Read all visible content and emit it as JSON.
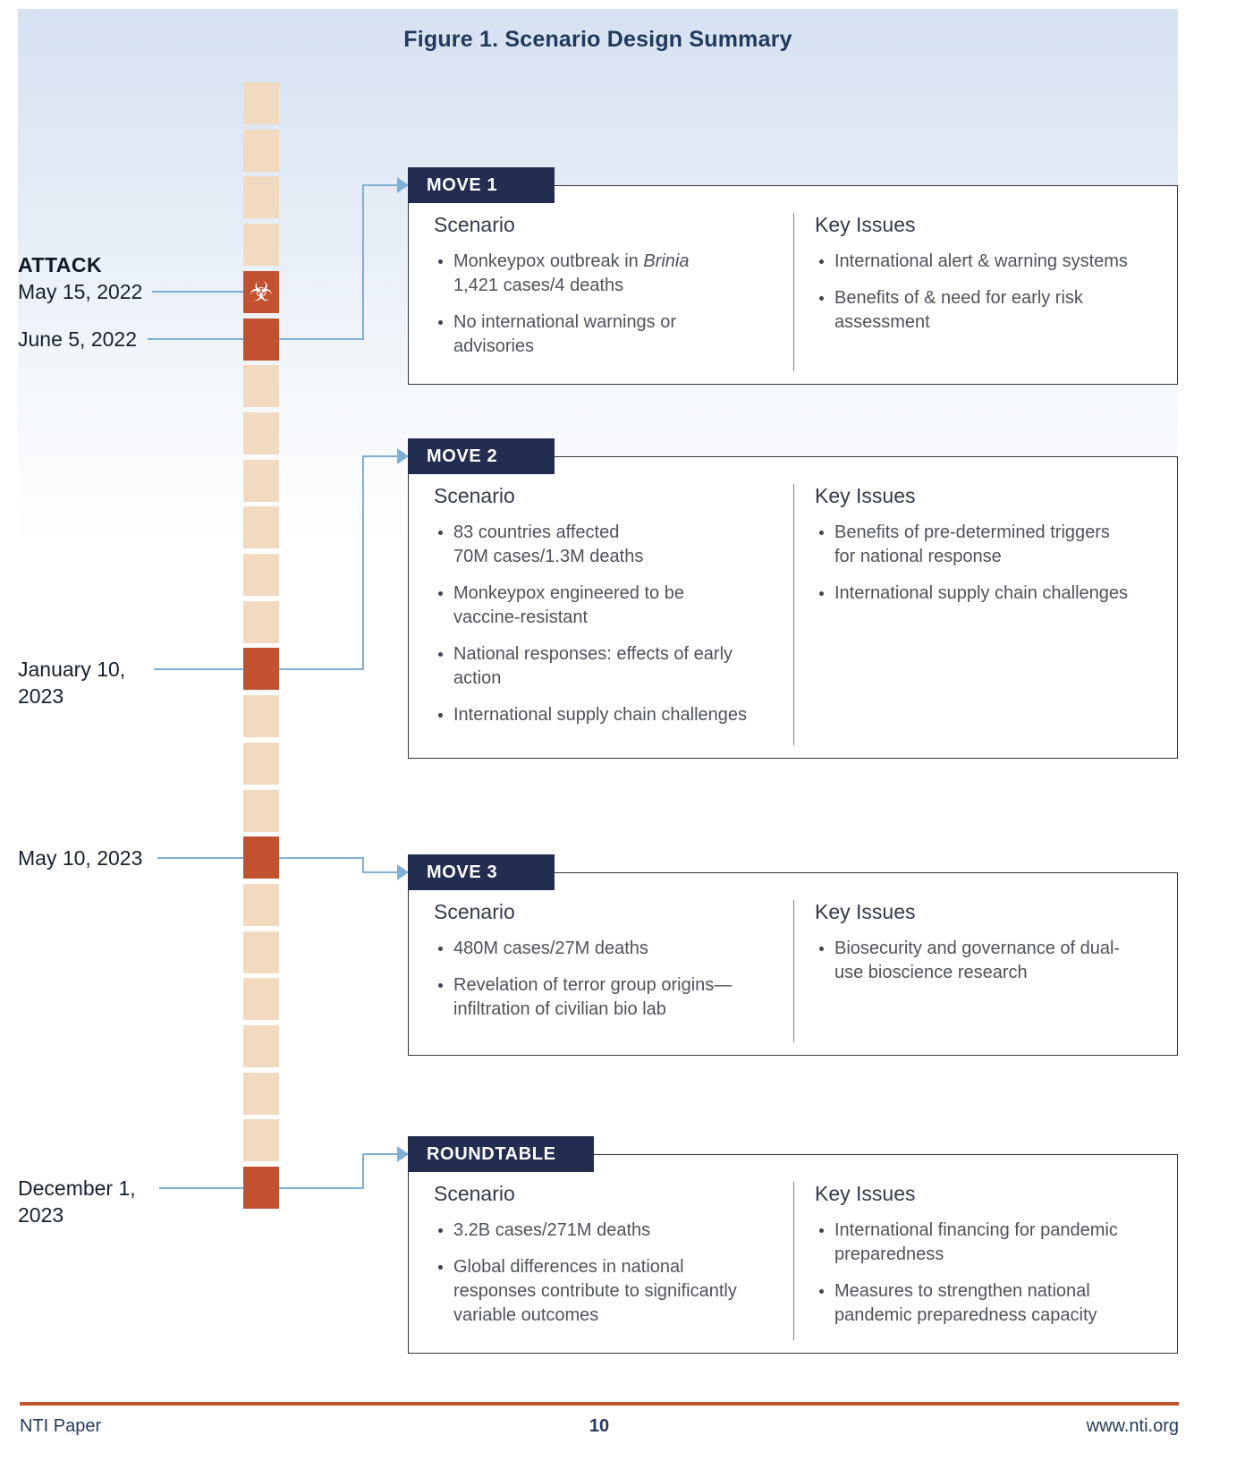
{
  "title": "Figure 1. Scenario Design Summary",
  "colors": {
    "navy": "#222d50",
    "title_navy": "#21395c",
    "beige_square": "#f2dac1",
    "orange_square": "#c0522f",
    "connector_blue": "#7fafd4",
    "box_border": "#30343d",
    "body_text": "#4d525b",
    "footer_rule": "#c0542f",
    "footer_text": "#24395b",
    "gradient_top": "#d6e1f1"
  },
  "icons": {
    "biohazard": "☣"
  },
  "labels": {
    "scenario": "Scenario",
    "key_issues": "Key Issues"
  },
  "timeline": {
    "squares": {
      "count": 24,
      "orange": [
        4,
        5,
        12,
        16,
        23
      ],
      "biohazard_index": 4
    },
    "events": [
      {
        "name": "attack-may-15-2022",
        "heading": "ATTACK",
        "label": "May 15, 2022",
        "square_index": 4,
        "icon": "biohazard-icon"
      },
      {
        "name": "june-5-2022",
        "label": "June 5, 2022",
        "square_index": 5,
        "target": "MOVE 1"
      },
      {
        "name": "january-10-2023",
        "label": "January 10,\n2023",
        "square_index": 12,
        "target": "MOVE 2"
      },
      {
        "name": "may-10-2023",
        "label": "May 10, 2023",
        "square_index": 16,
        "target": "MOVE 3"
      },
      {
        "name": "december-1-2023",
        "label": "December 1,\n2023",
        "square_index": 23,
        "target": "ROUNDTABLE"
      }
    ]
  },
  "boxes": [
    {
      "tab": "MOVE 1",
      "scenario": [
        "Monkeypox outbreak in *Brinia*\n1,421 cases/4 deaths",
        "No international warnings or advisories"
      ],
      "key_issues": [
        "International alert & warning systems",
        "Benefits of & need for early risk assessment"
      ]
    },
    {
      "tab": "MOVE 2",
      "scenario": [
        "83 countries affected\n70M cases/1.3M deaths",
        "Monkeypox engineered to be vaccine-resistant",
        "National responses: effects of early action",
        "International supply chain challenges"
      ],
      "key_issues": [
        "Benefits of pre-determined triggers for national response",
        "International supply chain challenges"
      ]
    },
    {
      "tab": "MOVE 3",
      "scenario": [
        "480M cases/27M deaths",
        "Revelation of terror group origins—infiltration of civilian bio lab"
      ],
      "key_issues": [
        "Biosecurity and governance of dual-use bioscience research"
      ]
    },
    {
      "tab": "ROUNDTABLE",
      "scenario": [
        "3.2B cases/271M deaths",
        "Global differences in national responses contribute to significantly variable outcomes"
      ],
      "key_issues": [
        "International financing for pandemic preparedness",
        "Measures to strengthen national pandemic preparedness capacity"
      ]
    }
  ],
  "footer": {
    "left": "NTI Paper",
    "page": "10",
    "right": "www.nti.org"
  }
}
